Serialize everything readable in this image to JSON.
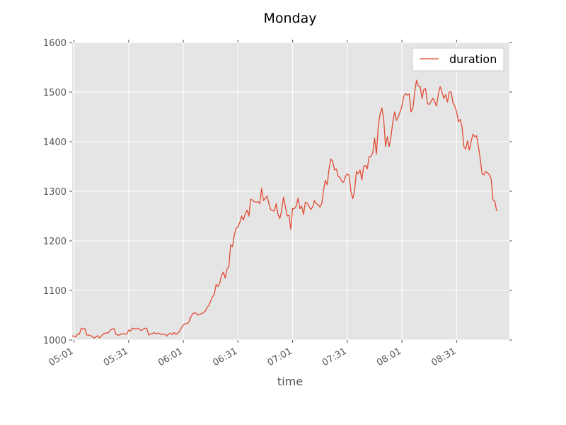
{
  "chart_data": {
    "type": "line",
    "title": "Monday",
    "xlabel": "time",
    "ylabel": "",
    "ylim": [
      1000,
      1600
    ],
    "yticks": [
      1000,
      1100,
      1200,
      1300,
      1400,
      1500,
      1600
    ],
    "x_unit": "minutes",
    "xlim": [
      "05:00",
      "09:00"
    ],
    "xticks": [
      "05:01",
      "05:31",
      "06:01",
      "06:31",
      "07:01",
      "07:31",
      "08:01",
      "08:31"
    ],
    "grid": true,
    "legend": {
      "position": "top-right",
      "entries": [
        "duration"
      ]
    },
    "series": [
      {
        "name": "duration",
        "color": "#e24a33",
        "start_time": "05:00",
        "step_minutes": 1,
        "values": [
          1008,
          1008,
          1006,
          1012,
          1012,
          1024,
          1022,
          1023,
          1010,
          1010,
          1009,
          1007,
          1004,
          1006,
          1009,
          1004,
          1008,
          1012,
          1014,
          1014,
          1015,
          1020,
          1022,
          1023,
          1012,
          1010,
          1010,
          1012,
          1013,
          1012,
          1012,
          1020,
          1018,
          1024,
          1023,
          1022,
          1024,
          1021,
          1019,
          1022,
          1024,
          1023,
          1010,
          1012,
          1013,
          1015,
          1012,
          1014,
          1013,
          1011,
          1012,
          1012,
          1008,
          1012,
          1014,
          1011,
          1015,
          1011,
          1014,
          1018,
          1025,
          1030,
          1033,
          1033,
          1036,
          1045,
          1052,
          1055,
          1054,
          1050,
          1052,
          1053,
          1055,
          1058,
          1065,
          1070,
          1078,
          1087,
          1092,
          1112,
          1108,
          1115,
          1130,
          1137,
          1125,
          1143,
          1148,
          1192,
          1188,
          1212,
          1225,
          1228,
          1237,
          1250,
          1242,
          1254,
          1262,
          1250,
          1284,
          1282,
          1279,
          1278,
          1279,
          1275,
          1306,
          1281,
          1286,
          1290,
          1275,
          1263,
          1261,
          1260,
          1275,
          1253,
          1245,
          1262,
          1288,
          1270,
          1250,
          1252,
          1223,
          1265,
          1265,
          1270,
          1286,
          1265,
          1270,
          1253,
          1278,
          1276,
          1270,
          1263,
          1268,
          1281,
          1275,
          1273,
          1268,
          1275,
          1303,
          1322,
          1313,
          1345,
          1365,
          1360,
          1343,
          1345,
          1330,
          1328,
          1320,
          1318,
          1330,
          1335,
          1332,
          1300,
          1285,
          1300,
          1340,
          1335,
          1343,
          1323,
          1350,
          1352,
          1345,
          1370,
          1370,
          1378,
          1407,
          1375,
          1430,
          1456,
          1468,
          1445,
          1390,
          1410,
          1390,
          1410,
          1440,
          1460,
          1443,
          1450,
          1460,
          1472,
          1491,
          1497,
          1494,
          1496,
          1460,
          1468,
          1499,
          1524,
          1512,
          1512,
          1487,
          1505,
          1507,
          1477,
          1475,
          1481,
          1488,
          1480,
          1472,
          1496,
          1511,
          1500,
          1487,
          1495,
          1480,
          1500,
          1500,
          1478,
          1472,
          1460,
          1440,
          1445,
          1430,
          1390,
          1385,
          1402,
          1383,
          1400,
          1415,
          1410,
          1412,
          1390,
          1365,
          1335,
          1333,
          1340,
          1337,
          1333,
          1325,
          1282,
          1280,
          1260
        ]
      }
    ]
  }
}
